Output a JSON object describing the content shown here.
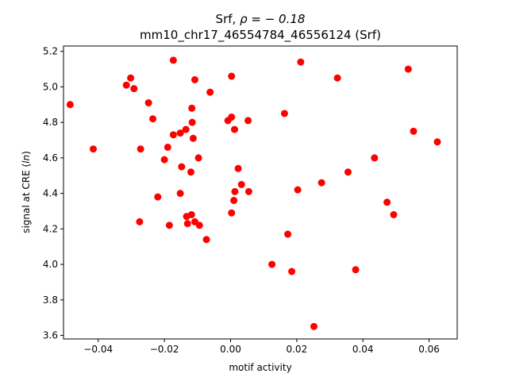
{
  "chart_data": {
    "type": "scatter",
    "title_line1_prefix": "Srf, ",
    "title_line1_math": "ρ = − 0.18",
    "title_line2": "mm10_chr17_46554784_46556124 (Srf)",
    "xlabel": "motif activity",
    "ylabel_prefix": "signal at CRE (",
    "ylabel_math": "ln",
    "ylabel_suffix": ")",
    "xlim": [
      -0.0505,
      0.0685
    ],
    "ylim": [
      3.58,
      5.23
    ],
    "x_ticks": [
      -0.04,
      -0.02,
      0.0,
      0.02,
      0.04,
      0.06
    ],
    "x_tick_labels": [
      "−0.04",
      "−0.02",
      "0.00",
      "0.02",
      "0.04",
      "0.06"
    ],
    "y_ticks": [
      3.6,
      3.8,
      4.0,
      4.2,
      4.4,
      4.6,
      4.8,
      5.0,
      5.2
    ],
    "y_tick_labels": [
      "3.6",
      "3.8",
      "4.0",
      "4.2",
      "4.4",
      "4.6",
      "4.8",
      "5.0",
      "5.2"
    ],
    "grid": false,
    "marker_color": "#ff0000",
    "points": [
      {
        "x": -0.0485,
        "y": 4.9
      },
      {
        "x": -0.0415,
        "y": 4.65
      },
      {
        "x": -0.0315,
        "y": 5.01
      },
      {
        "x": -0.0302,
        "y": 5.05
      },
      {
        "x": -0.0292,
        "y": 4.99
      },
      {
        "x": -0.0275,
        "y": 4.24
      },
      {
        "x": -0.0272,
        "y": 4.65
      },
      {
        "x": -0.0248,
        "y": 4.91
      },
      {
        "x": -0.0235,
        "y": 4.82
      },
      {
        "x": -0.022,
        "y": 4.38
      },
      {
        "x": -0.02,
        "y": 4.59
      },
      {
        "x": -0.019,
        "y": 4.66
      },
      {
        "x": -0.0185,
        "y": 4.22
      },
      {
        "x": -0.0173,
        "y": 5.15
      },
      {
        "x": -0.0173,
        "y": 4.73
      },
      {
        "x": -0.0152,
        "y": 4.74
      },
      {
        "x": -0.0152,
        "y": 4.4
      },
      {
        "x": -0.0148,
        "y": 4.55
      },
      {
        "x": -0.0135,
        "y": 4.76
      },
      {
        "x": -0.0133,
        "y": 4.27
      },
      {
        "x": -0.013,
        "y": 4.23
      },
      {
        "x": -0.012,
        "y": 4.52
      },
      {
        "x": -0.0118,
        "y": 4.28
      },
      {
        "x": -0.0117,
        "y": 4.88
      },
      {
        "x": -0.0116,
        "y": 4.8
      },
      {
        "x": -0.0113,
        "y": 4.71
      },
      {
        "x": -0.0108,
        "y": 5.04
      },
      {
        "x": -0.0108,
        "y": 4.24
      },
      {
        "x": -0.0097,
        "y": 4.6
      },
      {
        "x": -0.0094,
        "y": 4.22
      },
      {
        "x": -0.0073,
        "y": 4.14
      },
      {
        "x": -0.0062,
        "y": 4.97
      },
      {
        "x": -0.0008,
        "y": 4.81
      },
      {
        "x": 0.0003,
        "y": 4.83
      },
      {
        "x": 0.0003,
        "y": 4.29
      },
      {
        "x": 0.0003,
        "y": 5.06
      },
      {
        "x": 0.001,
        "y": 4.36
      },
      {
        "x": 0.0012,
        "y": 4.76
      },
      {
        "x": 0.0013,
        "y": 4.41
      },
      {
        "x": 0.0023,
        "y": 4.54
      },
      {
        "x": 0.0033,
        "y": 4.45
      },
      {
        "x": 0.0053,
        "y": 4.81
      },
      {
        "x": 0.0055,
        "y": 4.41
      },
      {
        "x": 0.0125,
        "y": 4.0
      },
      {
        "x": 0.0163,
        "y": 4.85
      },
      {
        "x": 0.0173,
        "y": 4.17
      },
      {
        "x": 0.0185,
        "y": 3.96
      },
      {
        "x": 0.0203,
        "y": 4.42
      },
      {
        "x": 0.0212,
        "y": 5.14
      },
      {
        "x": 0.0252,
        "y": 3.65
      },
      {
        "x": 0.0275,
        "y": 4.46
      },
      {
        "x": 0.0323,
        "y": 5.05
      },
      {
        "x": 0.0355,
        "y": 4.52
      },
      {
        "x": 0.0378,
        "y": 3.97
      },
      {
        "x": 0.0435,
        "y": 4.6
      },
      {
        "x": 0.0473,
        "y": 4.35
      },
      {
        "x": 0.0493,
        "y": 4.28
      },
      {
        "x": 0.0537,
        "y": 5.1
      },
      {
        "x": 0.0553,
        "y": 4.75
      },
      {
        "x": 0.0625,
        "y": 4.69
      }
    ]
  }
}
